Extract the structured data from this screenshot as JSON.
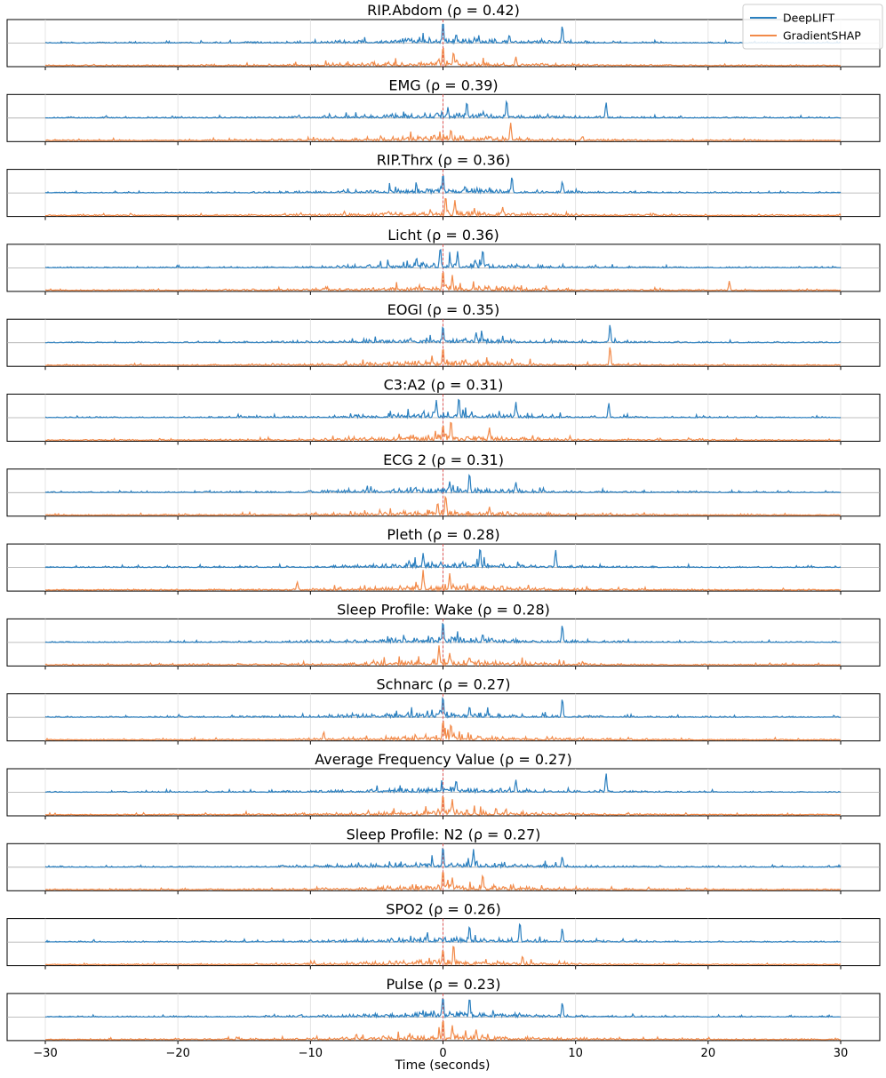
{
  "chart_data": {
    "type": "line",
    "xlabel": "Time (seconds)",
    "xlim": [
      -30,
      30
    ],
    "xticks": [
      -30,
      -20,
      -10,
      0,
      10,
      20,
      30
    ],
    "xtick_labels": [
      "−30",
      "−20",
      "−10",
      "0",
      "10",
      "20",
      "30"
    ],
    "marker_time": 0,
    "legend": {
      "placement": "top-right",
      "entries": [
        {
          "name": "DeepLIFT",
          "color": "#2a7fbf"
        },
        {
          "name": "GradientSHAP",
          "color": "#f28a49"
        }
      ]
    },
    "colors": {
      "deeplift": "#2a7fbf",
      "gradientshap": "#f28a49",
      "marker": "#e05555",
      "grid": "#dddddd",
      "baseline": "#aaaaaa"
    },
    "panels": [
      {
        "title": "RIP.Abdom (ρ = 0.42)",
        "signal": "RIP.Abdom",
        "rho": 0.42,
        "deeplift_peaks": [
          {
            "t": 0.0,
            "v": 1.0
          },
          {
            "t": 9.0,
            "v": 0.85
          },
          {
            "t": 1.0,
            "v": 0.45
          },
          {
            "t": 5.0,
            "v": 0.4
          }
        ],
        "gradientshap_peaks": [
          {
            "t": 0.0,
            "v": 0.95
          },
          {
            "t": 0.8,
            "v": 0.7
          },
          {
            "t": 5.5,
            "v": 0.45
          }
        ]
      },
      {
        "title": "EMG (ρ = 0.39)",
        "signal": "EMG",
        "rho": 0.39,
        "deeplift_peaks": [
          {
            "t": 1.8,
            "v": 0.75
          },
          {
            "t": 4.8,
            "v": 0.85
          },
          {
            "t": 12.3,
            "v": 0.75
          },
          {
            "t": 0.3,
            "v": 0.2
          }
        ],
        "gradientshap_peaks": [
          {
            "t": 0.6,
            "v": 0.55
          },
          {
            "t": 5.1,
            "v": 0.9
          },
          {
            "t": 10.5,
            "v": 0.2
          }
        ]
      },
      {
        "title": "RIP.Thrx (ρ = 0.36)",
        "signal": "RIP.Thrx",
        "rho": 0.36,
        "deeplift_peaks": [
          {
            "t": 0.0,
            "v": 0.95
          },
          {
            "t": 5.2,
            "v": 0.8
          },
          {
            "t": 9.0,
            "v": 0.55
          }
        ],
        "gradientshap_peaks": [
          {
            "t": 0.2,
            "v": 1.0
          },
          {
            "t": 0.9,
            "v": 0.75
          },
          {
            "t": 4.5,
            "v": 0.4
          }
        ]
      },
      {
        "title": "Licht (ρ = 0.36)",
        "signal": "Licht",
        "rho": 0.36,
        "deeplift_peaks": [
          {
            "t": -0.2,
            "v": 0.95
          },
          {
            "t": 3.0,
            "v": 0.85
          },
          {
            "t": 1.1,
            "v": 0.75
          },
          {
            "t": -2.0,
            "v": 0.5
          }
        ],
        "gradientshap_peaks": [
          {
            "t": 0.0,
            "v": 1.0
          },
          {
            "t": 0.7,
            "v": 0.75
          },
          {
            "t": 21.6,
            "v": 0.45
          }
        ]
      },
      {
        "title": "EOGl (ρ = 0.35)",
        "signal": "EOGl",
        "rho": 0.35,
        "deeplift_peaks": [
          {
            "t": 0.0,
            "v": 0.8
          },
          {
            "t": 12.6,
            "v": 0.85
          },
          {
            "t": 2.5,
            "v": 0.5
          }
        ],
        "gradientshap_peaks": [
          {
            "t": 0.0,
            "v": 0.9
          },
          {
            "t": 12.6,
            "v": 0.95
          },
          {
            "t": 5.2,
            "v": 0.35
          }
        ]
      },
      {
        "title": "C3:A2 (ρ = 0.31)",
        "signal": "C3:A2",
        "rho": 0.31,
        "deeplift_peaks": [
          {
            "t": 1.2,
            "v": 0.95
          },
          {
            "t": -0.5,
            "v": 0.8
          },
          {
            "t": 12.5,
            "v": 0.7
          },
          {
            "t": 5.5,
            "v": 0.7
          }
        ],
        "gradientshap_peaks": [
          {
            "t": 0.6,
            "v": 1.0
          },
          {
            "t": 0.0,
            "v": 0.8
          },
          {
            "t": 3.5,
            "v": 0.6
          }
        ]
      },
      {
        "title": "ECG 2 (ρ = 0.31)",
        "signal": "ECG 2",
        "rho": 0.31,
        "deeplift_peaks": [
          {
            "t": 2.0,
            "v": 0.95
          },
          {
            "t": 0.5,
            "v": 0.5
          },
          {
            "t": 5.5,
            "v": 0.5
          }
        ],
        "gradientshap_peaks": [
          {
            "t": 0.2,
            "v": 1.0
          },
          {
            "t": -0.4,
            "v": 0.65
          },
          {
            "t": 3.5,
            "v": 0.4
          }
        ]
      },
      {
        "title": "Pleth (ρ = 0.28)",
        "signal": "Pleth",
        "rho": 0.28,
        "deeplift_peaks": [
          {
            "t": 2.8,
            "v": 0.95
          },
          {
            "t": 8.5,
            "v": 0.8
          },
          {
            "t": -1.5,
            "v": 0.65
          }
        ],
        "gradientshap_peaks": [
          {
            "t": -1.5,
            "v": 0.95
          },
          {
            "t": 0.5,
            "v": 0.8
          },
          {
            "t": -11.0,
            "v": 0.4
          }
        ]
      },
      {
        "title": "Sleep Profile: Wake (ρ = 0.28)",
        "signal": "Sleep Profile: Wake",
        "rho": 0.28,
        "deeplift_peaks": [
          {
            "t": 0.0,
            "v": 1.0
          },
          {
            "t": 9.0,
            "v": 0.85
          },
          {
            "t": 3.0,
            "v": 0.4
          }
        ],
        "gradientshap_peaks": [
          {
            "t": -0.3,
            "v": 0.95
          },
          {
            "t": 0.5,
            "v": 0.6
          },
          {
            "t": 2.0,
            "v": 0.4
          }
        ]
      },
      {
        "title": "Schnarc (ρ = 0.27)",
        "signal": "Schnarc",
        "rho": 0.27,
        "deeplift_peaks": [
          {
            "t": 0.0,
            "v": 1.0
          },
          {
            "t": 9.0,
            "v": 0.9
          },
          {
            "t": 2.0,
            "v": 0.55
          }
        ],
        "gradientshap_peaks": [
          {
            "t": 0.0,
            "v": 1.0
          },
          {
            "t": 0.6,
            "v": 0.8
          },
          {
            "t": -9.0,
            "v": 0.4
          }
        ]
      },
      {
        "title": "Average Frequency Value (ρ = 0.27)",
        "signal": "Average Frequency Value",
        "rho": 0.27,
        "deeplift_peaks": [
          {
            "t": 12.3,
            "v": 0.85
          },
          {
            "t": 5.5,
            "v": 0.6
          },
          {
            "t": 1.0,
            "v": 0.55
          }
        ],
        "gradientshap_peaks": [
          {
            "t": 0.0,
            "v": 1.0
          },
          {
            "t": 0.7,
            "v": 0.75
          },
          {
            "t": 4.0,
            "v": 0.35
          }
        ]
      },
      {
        "title": "Sleep Profile: N2 (ρ = 0.27)",
        "signal": "Sleep Profile: N2",
        "rho": 0.27,
        "deeplift_peaks": [
          {
            "t": 0.0,
            "v": 1.0
          },
          {
            "t": 2.3,
            "v": 0.85
          },
          {
            "t": 9.0,
            "v": 0.5
          }
        ],
        "gradientshap_peaks": [
          {
            "t": 0.0,
            "v": 1.0
          },
          {
            "t": 3.0,
            "v": 0.75
          },
          {
            "t": 0.7,
            "v": 0.6
          }
        ]
      },
      {
        "title": "SPO2 (ρ = 0.26)",
        "signal": "SPO2",
        "rho": 0.26,
        "deeplift_peaks": [
          {
            "t": 5.8,
            "v": 0.95
          },
          {
            "t": 2.0,
            "v": 0.8
          },
          {
            "t": 9.0,
            "v": 0.65
          }
        ],
        "gradientshap_peaks": [
          {
            "t": 0.8,
            "v": 1.0
          },
          {
            "t": 0.0,
            "v": 0.75
          },
          {
            "t": 6.0,
            "v": 0.45
          }
        ]
      },
      {
        "title": "Pulse (ρ = 0.23)",
        "signal": "Pulse",
        "rho": 0.23,
        "deeplift_peaks": [
          {
            "t": 0.0,
            "v": 1.0
          },
          {
            "t": 2.0,
            "v": 0.95
          },
          {
            "t": 9.0,
            "v": 0.7
          }
        ],
        "gradientshap_peaks": [
          {
            "t": 0.0,
            "v": 1.0
          },
          {
            "t": 0.7,
            "v": 0.7
          },
          {
            "t": 2.5,
            "v": 0.5
          }
        ]
      }
    ]
  }
}
